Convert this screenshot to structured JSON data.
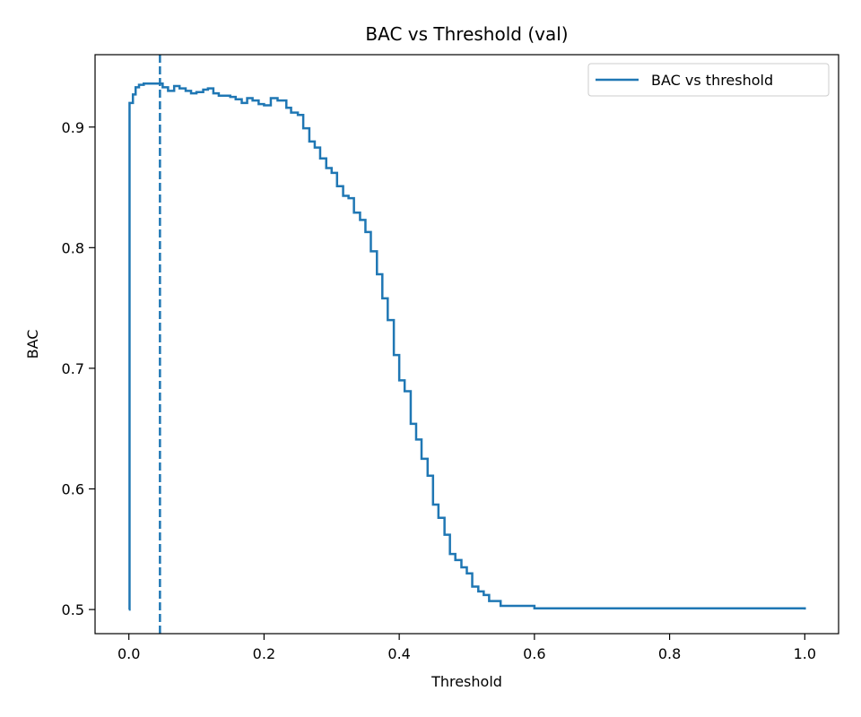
{
  "colors": {
    "series": "#1f77b4",
    "axes": "#000000",
    "background": "#ffffff",
    "legend_border": "#cccccc"
  },
  "chart_data": {
    "type": "line",
    "title": "BAC vs Threshold (val)",
    "xlabel": "Threshold",
    "ylabel": "BAC",
    "xlim": [
      -0.05,
      1.05
    ],
    "ylim": [
      0.48,
      0.96
    ],
    "xticks": [
      0.0,
      0.2,
      0.4,
      0.6,
      0.8,
      1.0
    ],
    "xtick_labels": [
      "0.0",
      "0.2",
      "0.4",
      "0.6",
      "0.8",
      "1.0"
    ],
    "yticks": [
      0.5,
      0.6,
      0.7,
      0.8,
      0.9
    ],
    "ytick_labels": [
      "0.5",
      "0.6",
      "0.7",
      "0.8",
      "0.9"
    ],
    "grid": false,
    "legend": {
      "placement": "upper right",
      "entries": [
        "BAC vs threshold"
      ]
    },
    "series": [
      {
        "name": "BAC vs threshold",
        "style": "steps-post",
        "x": [
          0.0,
          0.001,
          0.006,
          0.01,
          0.015,
          0.022,
          0.05,
          0.058,
          0.067,
          0.075,
          0.084,
          0.092,
          0.1,
          0.11,
          0.117,
          0.125,
          0.133,
          0.15,
          0.158,
          0.167,
          0.175,
          0.183,
          0.192,
          0.2,
          0.21,
          0.22,
          0.233,
          0.24,
          0.25,
          0.258,
          0.267,
          0.275,
          0.283,
          0.292,
          0.3,
          0.308,
          0.317,
          0.325,
          0.333,
          0.342,
          0.35,
          0.358,
          0.367,
          0.375,
          0.383,
          0.392,
          0.4,
          0.408,
          0.417,
          0.425,
          0.433,
          0.442,
          0.45,
          0.458,
          0.467,
          0.475,
          0.483,
          0.492,
          0.5,
          0.508,
          0.517,
          0.525,
          0.533,
          0.55,
          0.556,
          0.6,
          1.0
        ],
        "y": [
          0.5,
          0.92,
          0.927,
          0.933,
          0.935,
          0.936,
          0.933,
          0.93,
          0.934,
          0.932,
          0.93,
          0.928,
          0.929,
          0.931,
          0.932,
          0.928,
          0.926,
          0.925,
          0.923,
          0.92,
          0.924,
          0.922,
          0.919,
          0.918,
          0.924,
          0.922,
          0.916,
          0.912,
          0.91,
          0.899,
          0.888,
          0.883,
          0.874,
          0.866,
          0.862,
          0.851,
          0.843,
          0.841,
          0.829,
          0.823,
          0.813,
          0.797,
          0.778,
          0.758,
          0.74,
          0.711,
          0.69,
          0.681,
          0.654,
          0.641,
          0.625,
          0.611,
          0.587,
          0.576,
          0.562,
          0.546,
          0.541,
          0.535,
          0.53,
          0.519,
          0.515,
          0.512,
          0.507,
          0.503,
          0.503,
          0.501,
          0.5
        ]
      }
    ],
    "vlines": [
      {
        "x": 0.046,
        "style": "dashed"
      }
    ]
  }
}
